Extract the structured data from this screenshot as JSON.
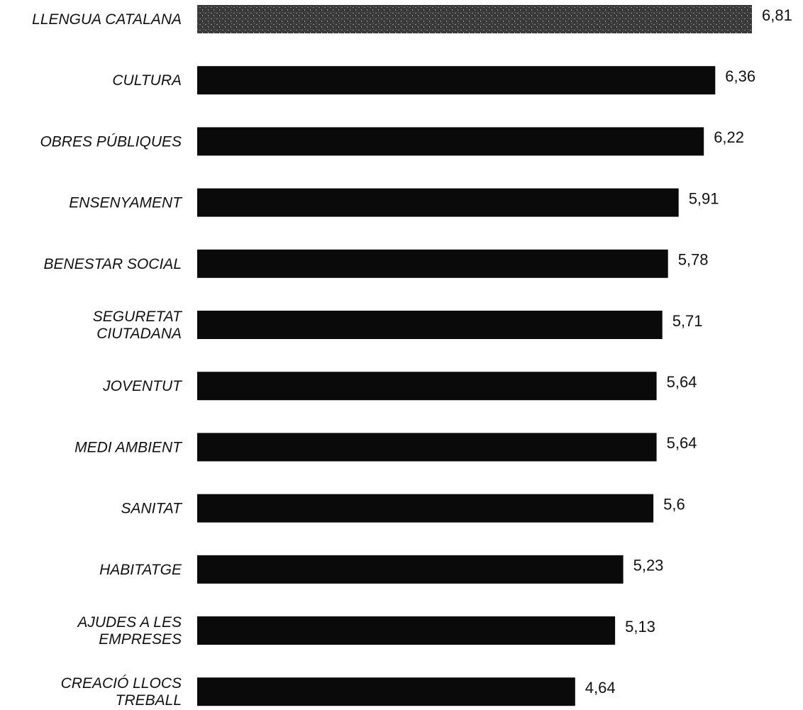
{
  "chart_data": {
    "type": "bar",
    "orientation": "horizontal",
    "categories": [
      "LLENGUA CATALANA",
      "CULTURA",
      "OBRES PÚBLIQUES",
      "ENSENYAMENT",
      "BENESTAR SOCIAL",
      "SEGURETAT CIUTADANA",
      "JOVENTUT",
      "MEDI AMBIENT",
      "SANITAT",
      "HABITATGE",
      "AJUDES A LES EMPRESES",
      "CREACIÓ LLOCS TREBALL"
    ],
    "category_lines": [
      [
        "LLENGUA CATALANA"
      ],
      [
        "CULTURA"
      ],
      [
        "OBRES PÚBLIQUES"
      ],
      [
        "ENSENYAMENT"
      ],
      [
        "BENESTAR SOCIAL"
      ],
      [
        "SEGURETAT",
        "CIUTADANA"
      ],
      [
        "JOVENTUT"
      ],
      [
        "MEDI AMBIENT"
      ],
      [
        "SANITAT"
      ],
      [
        "HABITATGE"
      ],
      [
        "AJUDES A LES",
        "EMPRESES"
      ],
      [
        "CREACIÓ LLOCS",
        "TREBALL"
      ]
    ],
    "values": [
      6.81,
      6.36,
      6.22,
      5.91,
      5.78,
      5.71,
      5.64,
      5.64,
      5.6,
      5.23,
      5.13,
      4.64
    ],
    "value_labels": [
      "6,81",
      "6,36",
      "6,22",
      "5,91",
      "5,78",
      "5,71",
      "5,64",
      "5,64",
      "5,6",
      "5,23",
      "5,13",
      "4,64"
    ],
    "highlight_index": 0,
    "xlim": [
      0,
      6.81
    ],
    "title": "",
    "xlabel": "",
    "ylabel": "",
    "grid": false,
    "legend": "none",
    "colors": {
      "bar": "#0a0a0a",
      "highlight_bar": "#555555",
      "text": "#111111",
      "background": "#ffffff"
    }
  }
}
